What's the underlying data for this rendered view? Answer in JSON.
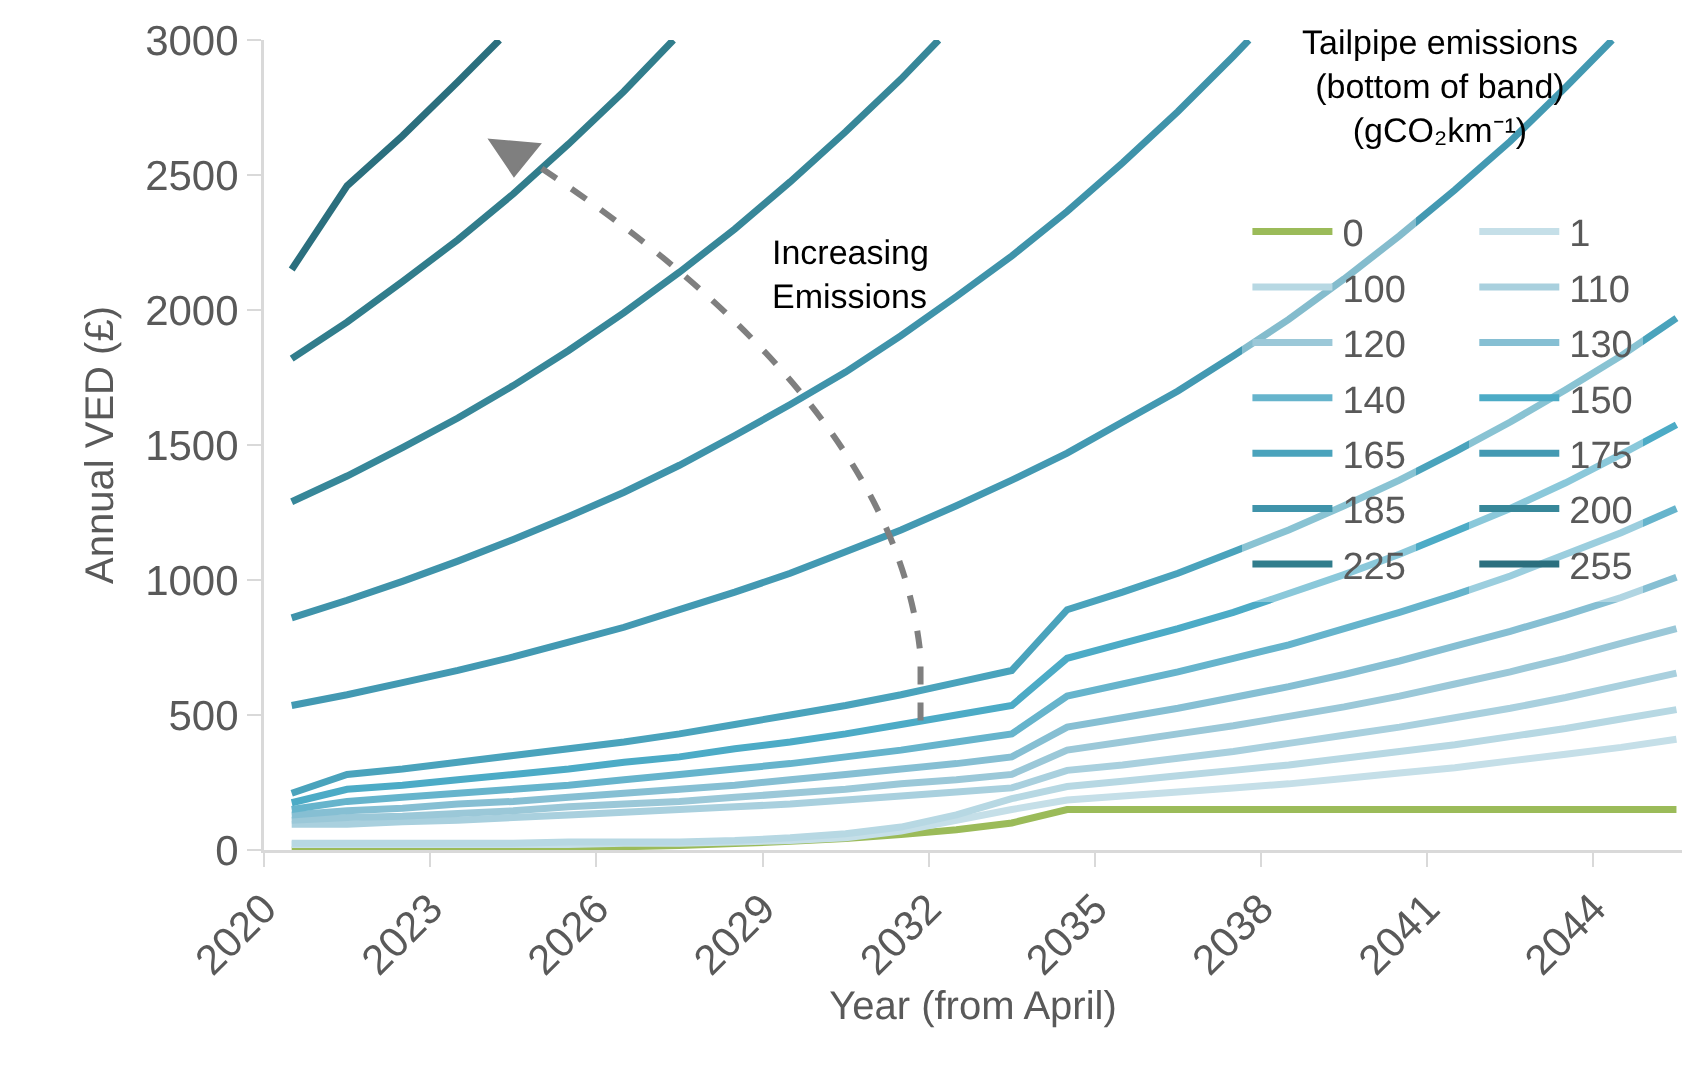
{
  "chart_data": {
    "type": "line",
    "xlabel": "Year (from April)",
    "ylabel": "Annual VED (£)",
    "legend_title": "Tailpipe emissions\n(bottom of band)\n(gCO₂km⁻¹)",
    "legend": "top right",
    "grid": false,
    "marker": "none",
    "line_style": "solid",
    "xlim": [
      2020,
      2045.6
    ],
    "xticks": [
      2020,
      2023,
      2026,
      2029,
      2032,
      2035,
      2038,
      2041,
      2044
    ],
    "ylim": [
      0,
      3000
    ],
    "yticks": [
      0,
      500,
      1000,
      1500,
      2000,
      2500,
      3000
    ],
    "annotations": [
      "Increasing\nEmissions"
    ],
    "x": [
      2020.5,
      2021.5,
      2022.5,
      2023.5,
      2024.5,
      2025.5,
      2026.5,
      2027.5,
      2028.5,
      2029.5,
      2030.5,
      2031.5,
      2032.5,
      2033.5,
      2034.5,
      2035.5,
      2036.5,
      2037.5,
      2038.5,
      2039.5,
      2040.5,
      2041.5,
      2042.5,
      2043.5,
      2044.5,
      2045.5
    ],
    "series": [
      {
        "name": "0",
        "color": "#9bbb59",
        "values": [
          0,
          1,
          2,
          3,
          5,
          8,
          12,
          17,
          24,
          32,
          43,
          57,
          75,
          100,
          150,
          150,
          150,
          150,
          150,
          150,
          150,
          150,
          150,
          150,
          150,
          150
        ]
      },
      {
        "name": "1",
        "color": "#c5dfe8",
        "values": [
          20,
          20,
          20,
          20,
          20,
          20,
          25,
          25,
          30,
          35,
          45,
          70,
          110,
          150,
          185,
          200,
          215,
          230,
          245,
          265,
          285,
          305,
          330,
          355,
          380,
          410
        ]
      },
      {
        "name": "100",
        "color": "#b7d8e3",
        "values": [
          25,
          25,
          25,
          25,
          25,
          30,
          30,
          30,
          35,
          45,
          60,
          85,
          130,
          190,
          235,
          255,
          275,
          295,
          315,
          340,
          365,
          390,
          420,
          450,
          485,
          520
        ]
      },
      {
        "name": "110",
        "color": "#a9d0de",
        "values": [
          95,
          95,
          105,
          110,
          120,
          130,
          140,
          150,
          160,
          170,
          185,
          200,
          215,
          230,
          295,
          315,
          340,
          365,
          395,
          425,
          455,
          490,
          525,
          565,
          610,
          655
        ]
      },
      {
        "name": "120",
        "color": "#9bc8d8",
        "values": [
          110,
          120,
          125,
          135,
          145,
          160,
          170,
          180,
          195,
          210,
          225,
          245,
          260,
          280,
          370,
          400,
          430,
          460,
          495,
          530,
          570,
          615,
          660,
          710,
          765,
          820
        ]
      },
      {
        "name": "130",
        "color": "#86bfd3",
        "values": [
          130,
          145,
          155,
          170,
          180,
          195,
          210,
          225,
          240,
          260,
          280,
          300,
          320,
          345,
          455,
          490,
          525,
          565,
          605,
          650,
          700,
          755,
          810,
          870,
          935,
          1010
        ]
      },
      {
        "name": "140",
        "color": "#66b4cc",
        "values": [
          150,
          180,
          195,
          210,
          225,
          240,
          260,
          280,
          300,
          320,
          345,
          370,
          400,
          430,
          570,
          615,
          660,
          710,
          760,
          820,
          880,
          945,
          1015,
          1095,
          1175,
          1265
        ]
      },
      {
        "name": "150",
        "color": "#4cabc6",
        "values": [
          175,
          225,
          240,
          260,
          280,
          300,
          325,
          345,
          375,
          400,
          430,
          465,
          500,
          535,
          710,
          765,
          820,
          880,
          950,
          1020,
          1095,
          1180,
          1265,
          1360,
          1465,
          1575
        ]
      },
      {
        "name": "165",
        "color": "#4aa3bc",
        "values": [
          210,
          280,
          300,
          325,
          350,
          375,
          400,
          430,
          465,
          500,
          535,
          575,
          620,
          665,
          890,
          955,
          1025,
          1105,
          1185,
          1275,
          1370,
          1475,
          1585,
          1705,
          1830,
          1970
        ]
      },
      {
        "name": "175",
        "color": "#4399b2",
        "x": [
          2020.5,
          2021.5,
          2022.5,
          2023.5,
          2024.5,
          2025.5,
          2026.5,
          2027.5,
          2028.5,
          2029.5,
          2030.5,
          2031.5,
          2032.5,
          2033.5,
          2034.5,
          2035.5,
          2036.5,
          2037.5,
          2038.5,
          2039.5,
          2040.5,
          2041.5,
          2042.5,
          2043.5,
          2044.34
        ],
        "values": [
          535,
          575,
          620,
          665,
          715,
          770,
          825,
          890,
          955,
          1025,
          1105,
          1185,
          1275,
          1370,
          1470,
          1585,
          1700,
          1830,
          1965,
          2115,
          2275,
          2445,
          2625,
          2825,
          3000
        ]
      },
      {
        "name": "185",
        "color": "#3f93aa",
        "x": [
          2020.5,
          2021.5,
          2022.5,
          2023.5,
          2024.5,
          2025.5,
          2026.5,
          2027.5,
          2028.5,
          2029.5,
          2030.5,
          2031.5,
          2032.5,
          2033.5,
          2034.5,
          2035.5,
          2036.5,
          2037.5,
          2037.78
        ],
        "values": [
          860,
          925,
          995,
          1070,
          1150,
          1235,
          1325,
          1425,
          1535,
          1650,
          1770,
          1905,
          2050,
          2200,
          2365,
          2545,
          2735,
          2940,
          3000
        ]
      },
      {
        "name": "200",
        "color": "#378799",
        "x": [
          2020.5,
          2021.5,
          2022.5,
          2023.5,
          2024.5,
          2025.5,
          2026.5,
          2027.5,
          2028.5,
          2029.5,
          2030.5,
          2031.5,
          2032.18
        ],
        "values": [
          1290,
          1385,
          1490,
          1600,
          1720,
          1850,
          1990,
          2140,
          2300,
          2475,
          2660,
          2855,
          3000
        ]
      },
      {
        "name": "225",
        "color": "#317d8c",
        "x": [
          2020.5,
          2021.5,
          2022.5,
          2023.5,
          2024.5,
          2025.5,
          2026.5,
          2027.39
        ],
        "values": [
          1820,
          1955,
          2105,
          2260,
          2430,
          2615,
          2810,
          3000
        ]
      },
      {
        "name": "255",
        "color": "#2b6f7e",
        "x": [
          2020.5,
          2021.5,
          2022.5,
          2023.5,
          2024.25
        ],
        "values": [
          2150,
          2460,
          2645,
          2845,
          3000
        ]
      }
    ]
  }
}
